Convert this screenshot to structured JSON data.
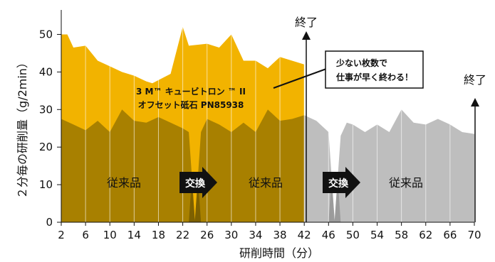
{
  "chart_data": {
    "type": "area",
    "title": "",
    "xlabel": "研削時間（分）",
    "ylabel": "２分毎の研削量（g/2min）",
    "xlim": [
      2,
      70
    ],
    "ylim": [
      0,
      55
    ],
    "x_ticks": [
      2,
      6,
      10,
      14,
      18,
      22,
      26,
      30,
      34,
      38,
      42,
      46,
      50,
      54,
      58,
      62,
      66,
      70
    ],
    "y_ticks": [
      0,
      10,
      20,
      30,
      40,
      50
    ],
    "colors": {
      "cubitron": "#F2B300",
      "conv_first": "#A88000",
      "conv_second": "#BEBEBE",
      "conv_dip": "#7E7E7E",
      "arrow": "#111111"
    },
    "series": [
      {
        "name": "3M™ キュービトロン ™ II オフセット砥石 PN85938",
        "x": [
          2,
          3,
          4,
          6,
          8,
          10,
          12,
          14,
          16,
          17,
          20,
          22,
          23,
          26,
          28,
          30,
          32,
          34,
          36,
          38,
          40,
          42
        ],
        "values": [
          50,
          50,
          46.5,
          47,
          43,
          41.5,
          40,
          39,
          37.5,
          37,
          39.5,
          52,
          47,
          47.5,
          46.5,
          50,
          43,
          43,
          41,
          44,
          43,
          42
        ]
      },
      {
        "name": "従来品",
        "x": [
          2,
          4,
          6,
          8,
          10,
          12,
          14,
          16,
          18,
          20,
          22,
          23,
          24,
          25,
          26,
          28,
          30,
          32,
          34,
          36,
          38,
          40,
          42,
          44,
          46,
          47,
          48,
          49,
          50,
          52,
          54,
          56,
          57,
          58,
          60,
          62,
          64,
          66,
          68,
          70
        ],
        "values": [
          27.5,
          26,
          24.5,
          27,
          24,
          30,
          27,
          26.5,
          28,
          26.5,
          25,
          24,
          0.5,
          24,
          27.5,
          26,
          24,
          26.5,
          24,
          30,
          27,
          27.5,
          28.5,
          27,
          24,
          0.5,
          23,
          26.5,
          26,
          24,
          26,
          24,
          27,
          30,
          26.5,
          26,
          27.5,
          26,
          24,
          23.5
        ]
      }
    ],
    "annotations": {
      "cubitron_label_line1": "3 M™ キュービトロン ™ II",
      "cubitron_label_line2": "オフセット砥石 PN85938",
      "callout_line1": "少ない枚数で",
      "callout_line2": "仕事が早く終わる！",
      "end_label": "終了",
      "exchange_label": "交換",
      "conventional_label": "従来品"
    }
  }
}
